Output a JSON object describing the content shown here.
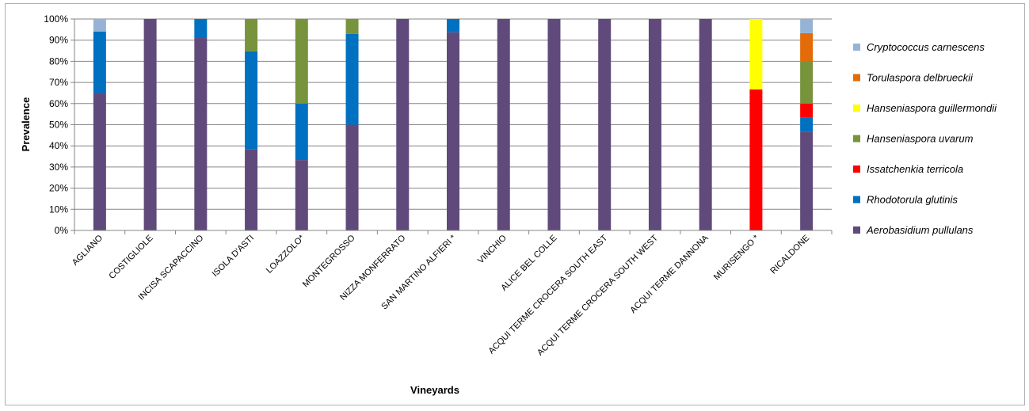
{
  "chart_data": {
    "type": "bar",
    "stacked": true,
    "percent": true,
    "xlabel": "Vineyards",
    "ylabel": "Prevalence",
    "ylim": [
      0,
      100
    ],
    "yticks": [
      "0%",
      "10%",
      "20%",
      "30%",
      "40%",
      "50%",
      "60%",
      "70%",
      "80%",
      "90%",
      "100%"
    ],
    "grid": true,
    "legend_position": "right",
    "categories": [
      "AGLIANO",
      "COSTIGLIOLE",
      "INCISA SCAPACCINO",
      "ISOLA D'ASTI",
      "LOAZZOLO*",
      "MONTEGROSSO",
      "NIZZA MONFERRATO",
      "SAN MARTINO  ALFIERI *",
      "VINCHIO",
      "ALICE BEL COLLE",
      "ACQUI TERME CROCERA SOUTH EAST",
      "ACQUI TERME CROCERA SOUTH WEST",
      "ACQUI TERME DANNONA",
      "MURISENGO *",
      "RICALDONE"
    ],
    "series": [
      {
        "name": "Aerobasidium pullulans",
        "color": "#604a7b",
        "values": [
          65,
          100,
          91,
          38.5,
          33.3,
          50,
          100,
          93.7,
          100,
          100,
          100,
          100,
          100,
          0,
          46.7
        ]
      },
      {
        "name": "Rhodotorula glutinis",
        "color": "#0070c0",
        "values": [
          29,
          0,
          9,
          46.2,
          26.7,
          43,
          0,
          6.3,
          0,
          0,
          0,
          0,
          0,
          0,
          6.6
        ]
      },
      {
        "name": "Issatchenkia terricola",
        "color": "#ff0000",
        "values": [
          0,
          0,
          0,
          0,
          0,
          0,
          0,
          0,
          0,
          0,
          0,
          0,
          0,
          66.7,
          6.7
        ]
      },
      {
        "name": "Hanseniaspora uvarum",
        "color": "#77933c",
        "values": [
          0,
          0,
          0,
          15.3,
          40,
          7,
          0,
          0,
          0,
          0,
          0,
          0,
          0,
          0,
          20
        ]
      },
      {
        "name": "Hanseniaspora guillermondii",
        "color": "#ffff00",
        "values": [
          0,
          0,
          0,
          0,
          0,
          0,
          0,
          0,
          0,
          0,
          0,
          0,
          0,
          33.3,
          0
        ]
      },
      {
        "name": "Torulaspora delbrueckii",
        "color": "#e36c09",
        "values": [
          0,
          0,
          0,
          0,
          0,
          0,
          0,
          0,
          0,
          0,
          0,
          0,
          0,
          0,
          13.3
        ]
      },
      {
        "name": "Cryptococcus carnescens",
        "color": "#95b3d7",
        "values": [
          6,
          0,
          0,
          0,
          0,
          0,
          0,
          0,
          0,
          0,
          0,
          0,
          0,
          0,
          6.7
        ]
      }
    ],
    "legend_order": [
      "Cryptococcus carnescens",
      "Torulaspora delbrueckii",
      "Hanseniaspora guillermondii",
      "Hanseniaspora uvarum",
      "Issatchenkia terricola",
      "Rhodotorula glutinis",
      "Aerobasidium pullulans"
    ]
  }
}
